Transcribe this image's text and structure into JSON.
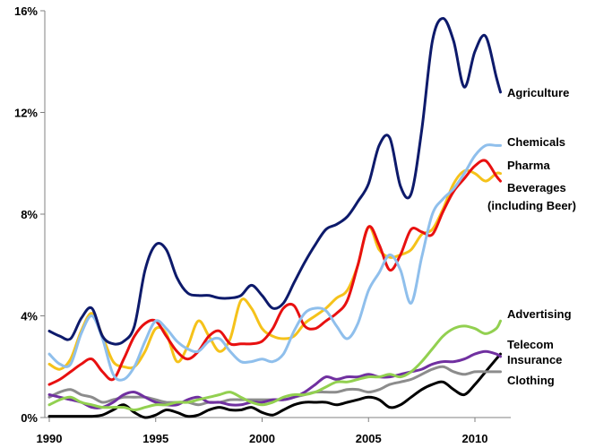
{
  "chart_data": {
    "type": "line",
    "title": "",
    "xlabel": "",
    "ylabel": "",
    "xlim": [
      1990,
      2011.5
    ],
    "ylim": [
      0,
      16
    ],
    "x_ticks": [
      1990,
      1995,
      2000,
      2005,
      2010
    ],
    "y_ticks": [
      0,
      4,
      8,
      12,
      16
    ],
    "y_tick_labels": [
      "0%",
      "4%",
      "8%",
      "12%",
      "16%"
    ],
    "grid": false,
    "legend": "none (series labelled at line ends, right side)",
    "x": [
      1990,
      1990.5,
      1991,
      1991.5,
      1992,
      1992.5,
      1993,
      1993.5,
      1994,
      1994.5,
      1995,
      1995.5,
      1996,
      1996.5,
      1997,
      1997.5,
      1998,
      1998.5,
      1999,
      1999.5,
      2000,
      2000.5,
      2001,
      2001.5,
      2002,
      2002.5,
      2003,
      2003.5,
      2004,
      2004.5,
      2005,
      2005.5,
      2006,
      2006.5,
      2007,
      2007.5,
      2008,
      2008.5,
      2009,
      2009.5,
      2010,
      2010.5,
      2011,
      2011.2
    ],
    "series": [
      {
        "name": "Agriculture",
        "color": "#0d1a6b",
        "values": [
          3.4,
          3.2,
          3.1,
          3.9,
          4.3,
          3.2,
          2.9,
          3.0,
          3.6,
          5.8,
          6.8,
          6.6,
          5.5,
          4.9,
          4.8,
          4.8,
          4.7,
          4.7,
          4.8,
          5.2,
          4.8,
          4.3,
          4.5,
          5.3,
          6.1,
          6.8,
          7.4,
          7.6,
          7.9,
          8.5,
          9.2,
          10.7,
          11.0,
          9.1,
          8.8,
          11.3,
          14.8,
          15.7,
          14.8,
          13.0,
          14.4,
          15.0,
          13.4,
          12.8
        ]
      },
      {
        "name": "Chemicals",
        "color": "#8fbfec",
        "values": [
          2.5,
          2.1,
          2.1,
          3.3,
          4.0,
          3.1,
          1.7,
          1.5,
          2.0,
          3.0,
          3.8,
          3.5,
          3.0,
          2.7,
          2.6,
          3.0,
          3.1,
          2.6,
          2.2,
          2.2,
          2.3,
          2.2,
          2.5,
          3.4,
          4.1,
          4.3,
          4.2,
          3.6,
          3.1,
          3.7,
          5.0,
          5.7,
          6.4,
          5.8,
          4.5,
          6.3,
          8.0,
          8.6,
          9.0,
          9.6,
          10.3,
          10.7,
          10.7,
          10.7
        ]
      },
      {
        "name": "Pharma",
        "color": "#e81010",
        "values": [
          1.3,
          1.5,
          1.8,
          2.1,
          2.3,
          1.8,
          1.5,
          2.3,
          3.2,
          3.7,
          3.8,
          3.2,
          2.6,
          2.3,
          2.6,
          3.2,
          3.4,
          2.9,
          2.9,
          2.9,
          3.0,
          3.5,
          4.3,
          4.4,
          3.6,
          3.5,
          3.8,
          4.1,
          4.6,
          6.0,
          7.5,
          6.8,
          5.8,
          6.4,
          7.4,
          7.3,
          7.2,
          8.1,
          8.9,
          9.4,
          9.9,
          10.1,
          9.5,
          9.3
        ]
      },
      {
        "name": "Beverages (including Beer)",
        "color": "#f5c21a",
        "values": [
          2.1,
          1.9,
          2.3,
          3.4,
          4.1,
          3.2,
          2.2,
          2.0,
          2.0,
          2.6,
          3.5,
          3.3,
          2.2,
          2.8,
          3.8,
          3.2,
          2.6,
          3.1,
          4.6,
          4.3,
          3.5,
          3.2,
          3.1,
          3.2,
          3.7,
          4.0,
          4.3,
          4.7,
          5.0,
          6.0,
          7.5,
          6.6,
          6.3,
          6.4,
          6.6,
          7.2,
          7.4,
          8.2,
          9.2,
          9.7,
          9.6,
          9.3,
          9.6,
          9.6
        ]
      },
      {
        "name": "Advertising",
        "color": "#92d050",
        "values": [
          0.5,
          0.7,
          0.8,
          0.6,
          0.5,
          0.4,
          0.4,
          0.4,
          0.3,
          0.4,
          0.5,
          0.5,
          0.6,
          0.6,
          0.7,
          0.8,
          0.9,
          1.0,
          0.8,
          0.6,
          0.5,
          0.6,
          0.8,
          0.9,
          0.9,
          1.0,
          1.2,
          1.4,
          1.4,
          1.5,
          1.6,
          1.6,
          1.7,
          1.6,
          1.8,
          2.2,
          2.7,
          3.2,
          3.5,
          3.6,
          3.5,
          3.3,
          3.5,
          3.8
        ]
      },
      {
        "name": "Telecom",
        "color": "#7030a0",
        "values": [
          0.9,
          0.8,
          0.7,
          0.6,
          0.4,
          0.4,
          0.6,
          0.9,
          1.0,
          0.8,
          0.6,
          0.5,
          0.5,
          0.7,
          0.8,
          0.6,
          0.6,
          0.5,
          0.5,
          0.6,
          0.6,
          0.7,
          0.7,
          0.8,
          1.0,
          1.3,
          1.6,
          1.5,
          1.6,
          1.6,
          1.7,
          1.6,
          1.6,
          1.7,
          1.8,
          1.9,
          2.1,
          2.2,
          2.2,
          2.3,
          2.5,
          2.6,
          2.5,
          2.4
        ]
      },
      {
        "name": "Insurance",
        "color": "#8c8c8c",
        "values": [
          0.8,
          1.0,
          1.1,
          0.9,
          0.8,
          0.6,
          0.7,
          0.8,
          0.8,
          0.8,
          0.7,
          0.6,
          0.6,
          0.6,
          0.5,
          0.6,
          0.6,
          0.7,
          0.7,
          0.7,
          0.7,
          0.7,
          0.7,
          0.8,
          0.9,
          1.0,
          1.0,
          1.0,
          1.1,
          1.1,
          1.0,
          1.1,
          1.3,
          1.4,
          1.5,
          1.7,
          1.9,
          2.0,
          1.8,
          1.7,
          1.8,
          1.8,
          1.8,
          1.8
        ]
      },
      {
        "name": "Clothing",
        "color": "#000000",
        "values": [
          0.05,
          0.05,
          0.05,
          0.05,
          0.05,
          0.1,
          0.3,
          0.5,
          0.2,
          0.0,
          0.1,
          0.3,
          0.2,
          0.05,
          0.1,
          0.3,
          0.4,
          0.3,
          0.3,
          0.4,
          0.2,
          0.1,
          0.3,
          0.5,
          0.6,
          0.6,
          0.6,
          0.5,
          0.6,
          0.7,
          0.8,
          0.7,
          0.4,
          0.5,
          0.8,
          1.1,
          1.3,
          1.4,
          1.1,
          0.9,
          1.3,
          1.8,
          2.3,
          2.5
        ]
      }
    ]
  }
}
